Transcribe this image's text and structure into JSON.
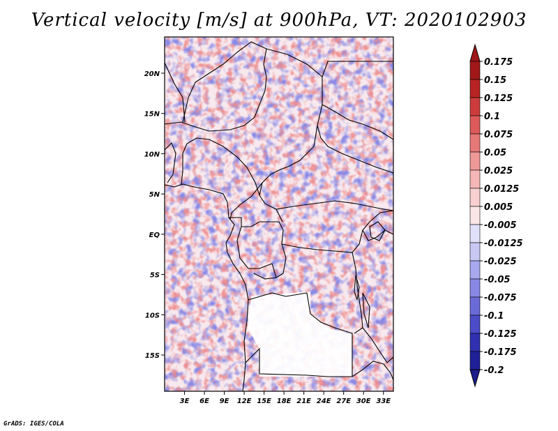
{
  "title": "Vertical velocity [m/s] at 900hPa, VT: 2020102903",
  "credit": "GrADS: IGES/COLA",
  "map": {
    "lat_range": [
      -19.5,
      24.5
    ],
    "lon_range": [
      0,
      34.5
    ],
    "lat_ticks": [
      {
        "value": 20,
        "label": "20N"
      },
      {
        "value": 15,
        "label": "15N"
      },
      {
        "value": 10,
        "label": "10N"
      },
      {
        "value": 5,
        "label": "5N"
      },
      {
        "value": 0,
        "label": "EQ"
      },
      {
        "value": -5,
        "label": "5S"
      },
      {
        "value": -10,
        "label": "10S"
      },
      {
        "value": -15,
        "label": "15S"
      }
    ],
    "lon_ticks": [
      {
        "value": 3,
        "label": "3E"
      },
      {
        "value": 6,
        "label": "6E"
      },
      {
        "value": 9,
        "label": "9E"
      },
      {
        "value": 12,
        "label": "12E"
      },
      {
        "value": 15,
        "label": "15E"
      },
      {
        "value": 18,
        "label": "18E"
      },
      {
        "value": 21,
        "label": "21E"
      },
      {
        "value": 24,
        "label": "24E"
      },
      {
        "value": 27,
        "label": "27E"
      },
      {
        "value": 30,
        "label": "30E"
      },
      {
        "value": 33,
        "label": "33E"
      }
    ]
  },
  "colorbar": {
    "levels": [
      {
        "label": "0.175",
        "color": "#a01818"
      },
      {
        "label": "0.15",
        "color": "#b82424"
      },
      {
        "label": "0.125",
        "color": "#cc3c3c"
      },
      {
        "label": "0.1",
        "color": "#dc5a5a"
      },
      {
        "label": "0.075",
        "color": "#e67878"
      },
      {
        "label": "0.05",
        "color": "#ee9898"
      },
      {
        "label": "0.025",
        "color": "#f4b6b6"
      },
      {
        "label": "0.0125",
        "color": "#f8d0d0"
      },
      {
        "label": "0.005",
        "color": "#fbe6e6"
      },
      {
        "label": "-0.005",
        "color": "#ffffff"
      },
      {
        "label": "-0.0125",
        "color": "#e0e0fa"
      },
      {
        "label": "-0.025",
        "color": "#c8c8f4"
      },
      {
        "label": "-0.05",
        "color": "#a8a8ee"
      },
      {
        "label": "-0.075",
        "color": "#8888e4"
      },
      {
        "label": "-0.1",
        "color": "#6a6ad8"
      },
      {
        "label": "-0.125",
        "color": "#4c4cc8"
      },
      {
        "label": "-0.175",
        "color": "#3030b0"
      },
      {
        "label": "-0.2",
        "color": "#202098"
      }
    ],
    "top_color": "#a01818",
    "bottom_color": "#1c1c8c"
  }
}
